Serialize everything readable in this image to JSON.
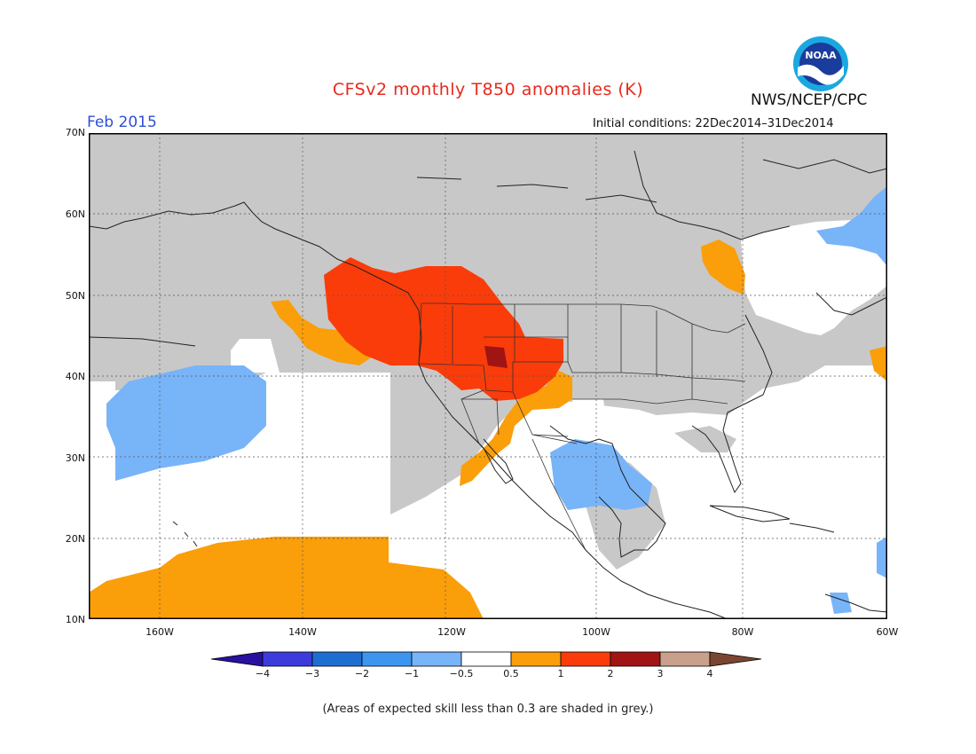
{
  "header": {
    "title": "CFSv2 monthly T850 anomalies (K)",
    "org": "NWS/NCEP/CPC",
    "logo_text": "NOAA",
    "month": "Feb 2015",
    "initial_conditions": "Initial conditions: 22Dec2014–31Dec2014"
  },
  "map": {
    "lat_labels": [
      "70N",
      "60N",
      "50N",
      "40N",
      "30N",
      "20N",
      "10N"
    ],
    "lon_labels": [
      "160W",
      "140W",
      "120W",
      "100W",
      "80W",
      "60W"
    ],
    "extent": {
      "lon": [
        -172,
        -60
      ],
      "lat": [
        10,
        70
      ]
    },
    "colors": {
      "grey_low_skill": "#c8c8c8",
      "neutral": "#ffffff",
      "light_blue": "#78b4f8",
      "orange": "#fa9e0a",
      "red": "#fa3c0a",
      "dark_red": "#a01414"
    }
  },
  "colorbar": {
    "labels": [
      "−4",
      "−3",
      "−2",
      "−1",
      "−0.5",
      "0.5",
      "1",
      "2",
      "3",
      "4"
    ],
    "colors": [
      "#2a10a0",
      "#3c3cdc",
      "#1e6ed2",
      "#3c96f0",
      "#78b4f8",
      "#ffffff",
      "#fa9e0a",
      "#fa3c0a",
      "#a01414",
      "#c8a08c",
      "#7a4632"
    ]
  },
  "footnote": "(Areas of expected skill less than 0.3 are shaded in grey.)"
}
